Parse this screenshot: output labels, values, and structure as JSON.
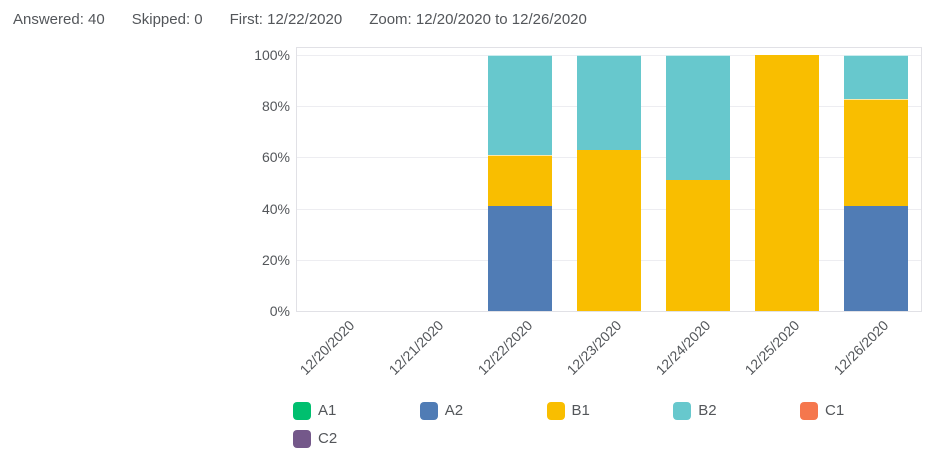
{
  "header": {
    "stats": [
      "Answered: 40",
      "Skipped: 0",
      "First: 12/22/2020",
      "Zoom: 12/20/2020 to 12/26/2020"
    ]
  },
  "colors": {
    "A1": "#00BF6F",
    "A2": "#507CB5",
    "B1": "#F9BE00",
    "B2": "#67C8CD",
    "C1": "#F5774D",
    "C2": "#74588A",
    "grid": "#ededf1",
    "plot_border": "#e1e1e6",
    "text": "#53565a"
  },
  "legend": {
    "entries": [
      {
        "label": "A1",
        "color": "#00BF6F"
      },
      {
        "label": "A2",
        "color": "#507CB5"
      },
      {
        "label": "B1",
        "color": "#F9BE00"
      },
      {
        "label": "B2",
        "color": "#67C8CD"
      },
      {
        "label": "C1",
        "color": "#F5774D"
      },
      {
        "label": "C2",
        "color": "#74588A"
      }
    ]
  },
  "chart_data": {
    "type": "bar",
    "stacked": true,
    "unit": "percent",
    "title": "",
    "xlabel": "",
    "ylabel": "",
    "categories": [
      "12/20/2020",
      "12/21/2020",
      "12/22/2020",
      "12/23/2020",
      "12/24/2020",
      "12/25/2020",
      "12/26/2020"
    ],
    "series": [
      {
        "name": "A1",
        "color": "#00BF6F",
        "values": [
          0,
          0,
          0,
          0,
          0,
          0,
          0
        ]
      },
      {
        "name": "A2",
        "color": "#507CB5",
        "values": [
          0,
          0,
          41,
          0,
          0,
          0,
          41
        ]
      },
      {
        "name": "B1",
        "color": "#F9BE00",
        "values": [
          0,
          0,
          20,
          63,
          51,
          100,
          42
        ]
      },
      {
        "name": "B2",
        "color": "#67C8CD",
        "values": [
          0,
          0,
          39,
          37,
          49,
          0,
          17
        ]
      },
      {
        "name": "C1",
        "color": "#F5774D",
        "values": [
          0,
          0,
          0,
          0,
          0,
          0,
          0
        ]
      },
      {
        "name": "C2",
        "color": "#74588A",
        "values": [
          0,
          0,
          0,
          0,
          0,
          0,
          0
        ]
      }
    ],
    "ylim": [
      0,
      100
    ],
    "yticks": [
      0,
      20,
      40,
      60,
      80,
      100
    ],
    "ytick_labels": [
      "0%",
      "20%",
      "40%",
      "60%",
      "80%",
      "100%"
    ],
    "grid": true,
    "legend_position": "bottom"
  }
}
